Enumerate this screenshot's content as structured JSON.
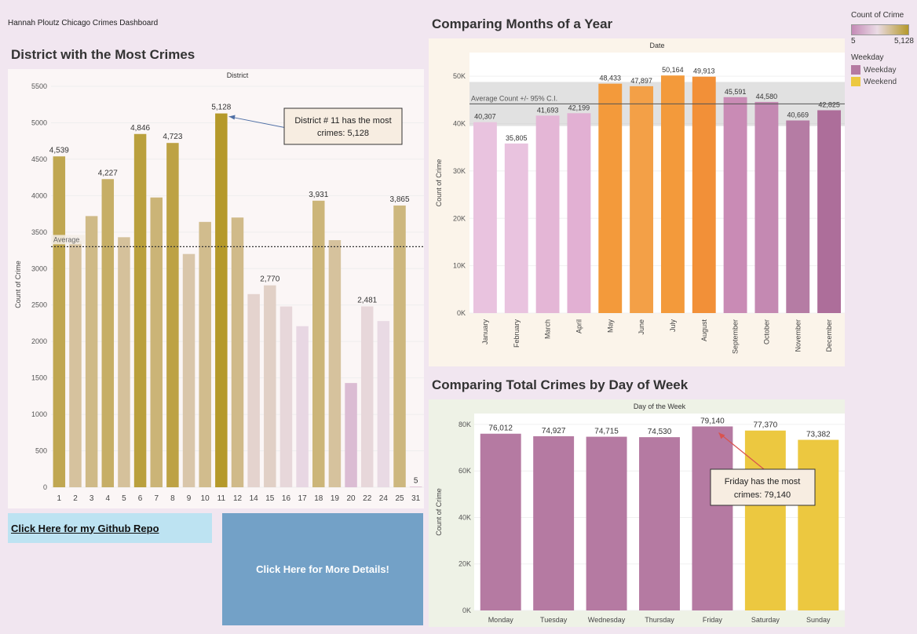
{
  "dashboard_title": "Hannah Ploutz Chicago Crimes Dashboard",
  "colors": {
    "background": "#f1e6f0",
    "gold_dark": "#b5992a",
    "gold": "#cdb04a",
    "weekday": "#b57aa2",
    "weekend": "#ecc840",
    "orange": "#f39a3b"
  },
  "legend": {
    "count_title": "Count of Crime",
    "count_min": "5",
    "count_max": "5,128",
    "weekday_title": "Weekday",
    "items": [
      {
        "label": "Weekday",
        "color": "#b57aa2"
      },
      {
        "label": "Weekend",
        "color": "#ecc840"
      }
    ]
  },
  "links": {
    "github": "Click Here for my Github Repo",
    "details": "Click Here for More Details!"
  },
  "chart_data": [
    {
      "type": "bar",
      "title": "District with the Most Crimes",
      "header": "District",
      "ylabel": "Count of Crime",
      "ylim": [
        0,
        5500
      ],
      "yticks": [
        0,
        500,
        1000,
        1500,
        2000,
        2500,
        3000,
        3500,
        4000,
        4500,
        5000,
        5500
      ],
      "categories": [
        "1",
        "2",
        "3",
        "4",
        "5",
        "6",
        "7",
        "8",
        "9",
        "10",
        "11",
        "12",
        "14",
        "15",
        "16",
        "17",
        "18",
        "19",
        "20",
        "22",
        "24",
        "25",
        "31"
      ],
      "values": [
        4539,
        3380,
        3720,
        4227,
        3430,
        4846,
        3975,
        4723,
        3200,
        3640,
        5128,
        3700,
        2650,
        2770,
        2480,
        2210,
        3931,
        3390,
        1430,
        2481,
        2280,
        3865,
        5
      ],
      "labels": [
        "4,539",
        "",
        "",
        "4,227",
        "",
        "4,846",
        "",
        "4,723",
        "",
        "",
        "5,128",
        "",
        "",
        "2,770",
        "",
        "",
        "3,931",
        "",
        "",
        "2,481",
        "",
        "3,865",
        "5"
      ],
      "reference_line": {
        "label": "Average",
        "value": 3300
      },
      "annotation": "District # 11 has the most crimes:  5,128"
    },
    {
      "type": "bar",
      "title": "Comparing Months of a Year",
      "header": "Date",
      "ylabel": "Count of Crime",
      "ylim": [
        0,
        55000
      ],
      "ytick_labels": [
        "0K",
        "10K",
        "20K",
        "30K",
        "40K",
        "50K"
      ],
      "categories": [
        "January",
        "February",
        "March",
        "April",
        "May",
        "June",
        "July",
        "August",
        "September",
        "October",
        "November",
        "December"
      ],
      "values": [
        40307,
        35805,
        41693,
        42199,
        48433,
        47897,
        50164,
        49913,
        45591,
        44580,
        40669,
        42825
      ],
      "labels": [
        "40,307",
        "35,805",
        "41,693",
        "42,199",
        "48,433",
        "47,897",
        "50,164",
        "49,913",
        "45,591",
        "44,580",
        "40,669",
        "42,825"
      ],
      "colors": [
        "#e9c3df",
        "#e9c3df",
        "#e4b6d6",
        "#e2b0d3",
        "#f39a3b",
        "#f3a047",
        "#f39a3b",
        "#f29038",
        "#c98bb5",
        "#c489b2",
        "#b57ca4",
        "#ad6e9a"
      ],
      "reference_band": {
        "label": "Average Count +/- 95% C.I.",
        "mean": 44174,
        "low": 39500,
        "high": 48800
      }
    },
    {
      "type": "bar",
      "title": "Comparing Total Crimes by Day of Week",
      "header": "Day of the Week",
      "ylabel": "Count of Crime",
      "ylim": [
        0,
        82000
      ],
      "ytick_labels": [
        "0K",
        "20K",
        "40K",
        "60K",
        "80K"
      ],
      "categories": [
        "Monday",
        "Tuesday",
        "Wednesday",
        "Thursday",
        "Friday",
        "Saturday",
        "Sunday"
      ],
      "values": [
        76012,
        74927,
        74715,
        74530,
        79140,
        77370,
        73382
      ],
      "labels": [
        "76,012",
        "74,927",
        "74,715",
        "74,530",
        "79,140",
        "77,370",
        "73,382"
      ],
      "groups": [
        "Weekday",
        "Weekday",
        "Weekday",
        "Weekday",
        "Weekday",
        "Weekend",
        "Weekend"
      ],
      "annotation": "Friday has the most crimes: 79,140"
    }
  ]
}
